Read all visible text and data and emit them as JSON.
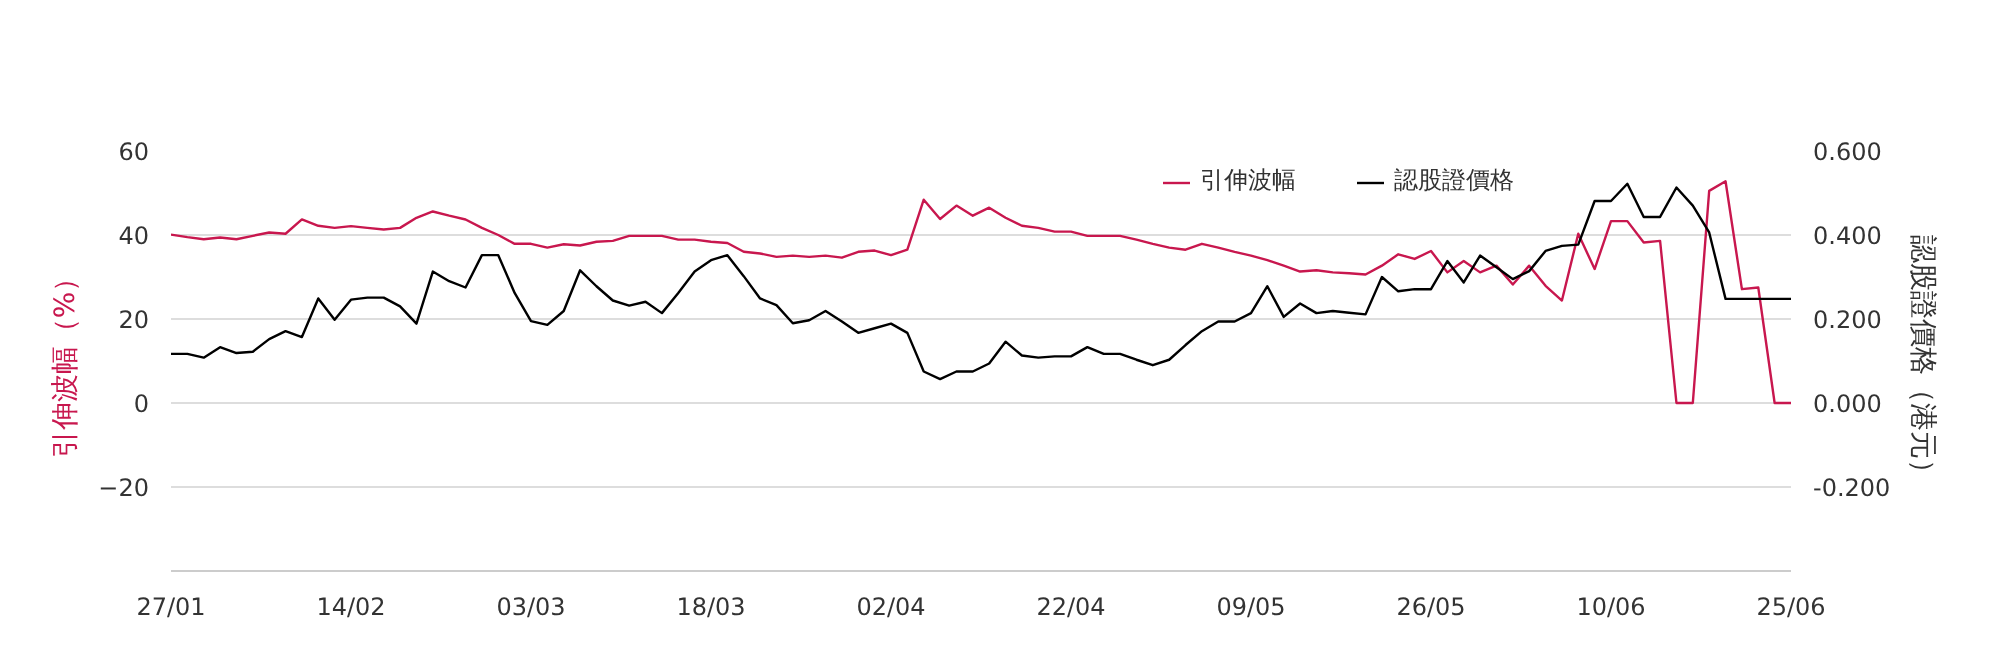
{
  "chart_data": {
    "type": "line",
    "categories": [
      "27/01",
      null,
      null,
      null,
      null,
      null,
      null,
      null,
      null,
      null,
      null,
      "14/02",
      null,
      null,
      null,
      null,
      null,
      null,
      null,
      null,
      null,
      null,
      "03/03",
      null,
      null,
      null,
      null,
      null,
      null,
      null,
      null,
      null,
      null,
      "18/03",
      null,
      null,
      null,
      null,
      null,
      null,
      null,
      null,
      null,
      null,
      "02/04",
      null,
      null,
      null,
      null,
      null,
      null,
      null,
      null,
      null,
      null,
      "22/04",
      null,
      null,
      null,
      null,
      null,
      null,
      null,
      null,
      null,
      null,
      "09/05",
      null,
      null,
      null,
      null,
      null,
      null,
      null,
      null,
      null,
      null,
      "26/05",
      null,
      null,
      null,
      null,
      null,
      null,
      null,
      null,
      null,
      null,
      "10/06",
      null,
      null,
      null,
      null,
      null,
      null,
      null,
      null,
      null,
      null,
      "25/06"
    ],
    "series": [
      {
        "name": "引伸波幅",
        "color": "#c8174e",
        "values": [
          40.1,
          39.5,
          39.0,
          39.4,
          39.0,
          39.8,
          40.6,
          40.3,
          43.7,
          42.2,
          41.7,
          42.1,
          41.7,
          41.3,
          41.7,
          44.1,
          45.6,
          44.6,
          43.7,
          41.7,
          40.0,
          37.9,
          37.9,
          37.0,
          37.8,
          37.5,
          38.4,
          38.6,
          39.8,
          39.8,
          39.8,
          38.9,
          38.9,
          38.4,
          38.1,
          36.0,
          35.6,
          34.8,
          35.1,
          34.8,
          35.1,
          34.6,
          36.0,
          36.3,
          35.2,
          36.5,
          48.4,
          43.8,
          47.0,
          44.6,
          46.5,
          44.1,
          42.2,
          41.7,
          40.8,
          40.8,
          39.8,
          39.8,
          39.8,
          38.9,
          37.9,
          37.0,
          36.5,
          37.9,
          37.0,
          36.0,
          35.1,
          34.0,
          32.7,
          31.3,
          31.6,
          31.1,
          30.9,
          30.6,
          32.7,
          35.4,
          34.3,
          36.2,
          31.1,
          33.8,
          31.1,
          32.7,
          28.2,
          32.7,
          27.9,
          24.4,
          40.3,
          31.9,
          43.3,
          43.3,
          38.2,
          38.6,
          0,
          0,
          50.5,
          52.8,
          27.1,
          27.5,
          0,
          0
        ]
      },
      {
        "name": "認股證價格",
        "color": "#000000",
        "axis": "y2",
        "values": [
          0.117,
          0.117,
          0.108,
          0.133,
          0.119,
          0.122,
          0.152,
          0.171,
          0.157,
          0.249,
          0.198,
          0.246,
          0.251,
          0.251,
          0.23,
          0.189,
          0.313,
          0.29,
          0.275,
          0.352,
          0.352,
          0.262,
          0.195,
          0.186,
          0.219,
          0.316,
          0.278,
          0.244,
          0.232,
          0.241,
          0.214,
          0.262,
          0.313,
          0.34,
          0.352,
          0.302,
          0.249,
          0.233,
          0.19,
          0.197,
          0.219,
          0.194,
          0.167,
          0.178,
          0.189,
          0.167,
          0.075,
          0.057,
          0.075,
          0.075,
          0.094,
          0.146,
          0.113,
          0.108,
          0.111,
          0.111,
          0.133,
          0.117,
          0.117,
          0.103,
          0.09,
          0.103,
          0.138,
          0.171,
          0.194,
          0.194,
          0.214,
          0.278,
          0.205,
          0.237,
          0.214,
          0.219,
          0.215,
          0.211,
          0.3,
          0.266,
          0.271,
          0.271,
          0.338,
          0.287,
          0.351,
          0.323,
          0.295,
          0.314,
          0.362,
          0.374,
          0.377,
          0.481,
          0.481,
          0.522,
          0.443,
          0.443,
          0.513,
          0.47,
          0.406,
          0.248,
          0.248,
          0.248,
          0.248,
          0.248
        ]
      }
    ],
    "ylabel": "引伸波幅（%）",
    "y2label": "認股證價格（港元）",
    "ylim": [
      -40,
      60
    ],
    "yticks": [
      -20,
      0,
      20,
      40,
      60
    ],
    "y2lim": [
      -0.4,
      0.6
    ],
    "y2ticks": [
      {
        "value": -0.2,
        "label": "-0.200"
      },
      {
        "value": 0,
        "label": "0.000"
      },
      {
        "value": 0.2,
        "label": "0.200"
      },
      {
        "value": 0.4,
        "label": "0.400"
      },
      {
        "value": 0.6,
        "label": "0.600"
      }
    ],
    "grid": "y",
    "legend": "top right",
    "marker": "none",
    "line_style": "solid"
  }
}
